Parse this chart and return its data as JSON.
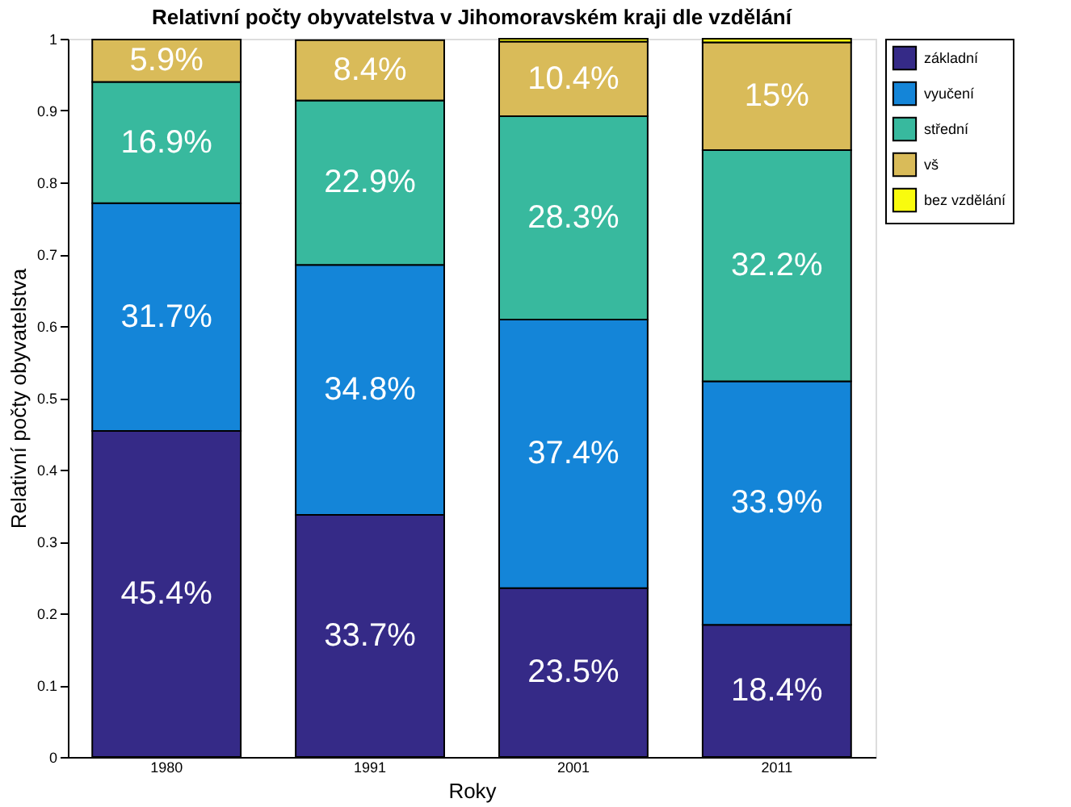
{
  "chart_data": {
    "type": "bar",
    "stacked": true,
    "title": "Relativní počty obyvatelstva v Jihomoravském kraji dle vzdělání",
    "xlabel": "Roky",
    "ylabel": "Relativní počty obyvatelstva",
    "categories": [
      "1980",
      "1991",
      "2001",
      "2011"
    ],
    "series": [
      {
        "name": "základní",
        "color": "#352a87",
        "values": [
          0.454,
          0.337,
          0.235,
          0.184
        ],
        "value_labels": [
          "45.4%",
          "33.7%",
          "23.5%",
          "18.4%"
        ]
      },
      {
        "name": "vyučení",
        "color": "#1485d8",
        "values": [
          0.317,
          0.348,
          0.374,
          0.339
        ],
        "value_labels": [
          "31.7%",
          "34.8%",
          "37.4%",
          "33.9%"
        ]
      },
      {
        "name": "střední",
        "color": "#38b99e",
        "values": [
          0.169,
          0.229,
          0.283,
          0.322
        ],
        "value_labels": [
          "16.9%",
          "22.9%",
          "28.3%",
          "32.2%"
        ]
      },
      {
        "name": "vš",
        "color": "#d9bb59",
        "values": [
          0.059,
          0.084,
          0.104,
          0.15
        ],
        "value_labels": [
          "5.9%",
          "8.4%",
          "10.4%",
          "15%"
        ]
      },
      {
        "name": "bez vzdělání",
        "color": "#f9fb0e",
        "values": [
          null,
          null,
          0.004,
          0.005
        ],
        "value_labels": [
          null,
          null,
          null,
          null
        ]
      }
    ],
    "ylim": [
      0,
      1
    ],
    "yticks": [
      0,
      0.1,
      0.2,
      0.3,
      0.4,
      0.5,
      0.6,
      0.7,
      0.8,
      0.9,
      1
    ],
    "grid": false,
    "legend": "top right"
  }
}
